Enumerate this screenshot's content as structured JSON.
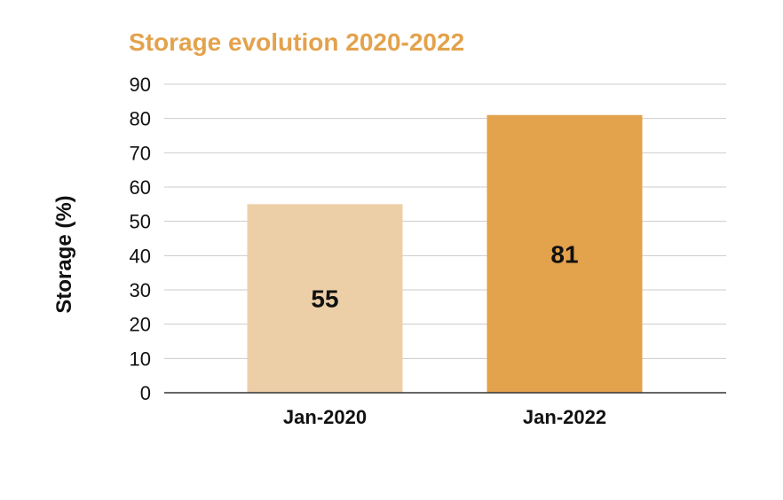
{
  "chart_data": {
    "type": "bar",
    "title": "Storage evolution 2020-2022",
    "xlabel": "",
    "ylabel": "Storage (%)",
    "categories": [
      "Jan-2020",
      "Jan-2022"
    ],
    "values": [
      55,
      81
    ],
    "data_labels": [
      "55",
      "81"
    ],
    "ylim": [
      0,
      90
    ],
    "yticks": [
      0,
      10,
      20,
      30,
      40,
      50,
      60,
      70,
      80,
      90
    ],
    "ytick_labels": [
      "0",
      "10",
      "20",
      "30",
      "40",
      "50",
      "60",
      "70",
      "80",
      "90"
    ],
    "grid": true,
    "legend": "none",
    "colors": {
      "title": "#e3a24c",
      "bars": [
        "#edcfa7",
        "#e3a24c"
      ],
      "grid": "#cccccc",
      "axis": "#333333",
      "text": "#111111"
    }
  }
}
